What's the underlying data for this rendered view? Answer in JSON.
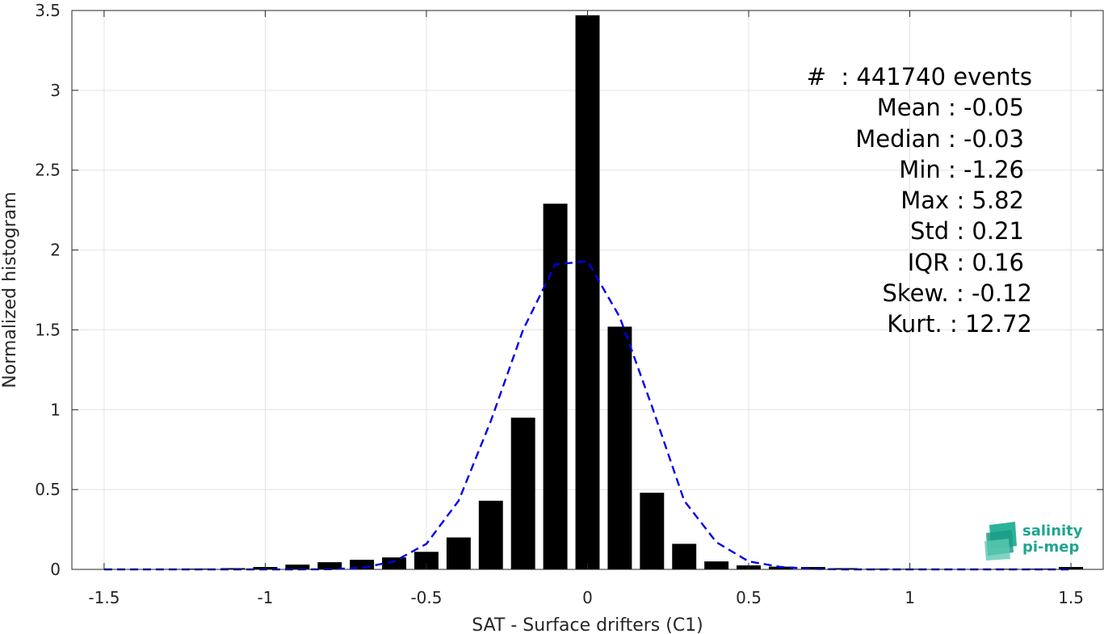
{
  "chart_data": {
    "type": "bar",
    "xlabel": "SAT - Surface drifters (C1)",
    "ylabel": "Normalized histogram",
    "xlim": [
      -1.6,
      1.6
    ],
    "ylim": [
      0,
      3.5
    ],
    "xticks": [
      "-1.5",
      "-1",
      "-0.5",
      "0",
      "0.5",
      "1",
      "1.5"
    ],
    "yticks": [
      "0",
      "0.5",
      "1",
      "1.5",
      "2",
      "2.5",
      "3",
      "3.5"
    ],
    "grid": true,
    "bar_color": "#000000",
    "bins": [
      -1.5,
      -1.4,
      -1.3,
      -1.2,
      -1.1,
      -1.0,
      -0.9,
      -0.8,
      -0.7,
      -0.6,
      -0.5,
      -0.4,
      -0.3,
      -0.2,
      -0.1,
      0.0,
      0.1,
      0.2,
      0.3,
      0.4,
      0.5,
      0.6,
      0.7,
      0.8,
      0.9,
      1.0,
      1.1,
      1.2,
      1.3,
      1.4,
      1.5
    ],
    "values": [
      0.002,
      0.002,
      0.003,
      0.005,
      0.008,
      0.015,
      0.03,
      0.045,
      0.06,
      0.075,
      0.11,
      0.2,
      0.43,
      0.95,
      2.29,
      3.47,
      1.52,
      0.48,
      0.16,
      0.05,
      0.025,
      0.017,
      0.015,
      0.008,
      0.005,
      0.004,
      0.003,
      0.003,
      0.004,
      0.005,
      0.015
    ],
    "fit_curve": {
      "style": "dashed",
      "color": "#0000e6",
      "x": [
        -1.5,
        -1.4,
        -1.3,
        -1.2,
        -1.1,
        -1.0,
        -0.9,
        -0.8,
        -0.7,
        -0.6,
        -0.5,
        -0.4,
        -0.3,
        -0.2,
        -0.1,
        0.0,
        0.1,
        0.2,
        0.3,
        0.4,
        0.5,
        0.6,
        0.7,
        0.8,
        0.9,
        1.0,
        1.1,
        1.2,
        1.3,
        1.4,
        1.5
      ],
      "y": [
        0,
        0,
        0,
        0,
        0,
        0,
        0,
        0.001,
        0.01,
        0.05,
        0.16,
        0.43,
        0.93,
        1.5,
        1.91,
        1.93,
        1.58,
        1.02,
        0.43,
        0.17,
        0.05,
        0.015,
        0.003,
        0,
        0,
        0,
        0,
        0,
        0,
        0,
        0
      ]
    }
  },
  "stats": {
    "count": "#  : 441740 events",
    "mean": "Mean : -0.05",
    "median": "Median : -0.03",
    "min": "Min : -1.26",
    "max": "Max : 5.82",
    "std": "Std : 0.21",
    "iqr": "IQR : 0.16",
    "skew": "Skew. : -0.12",
    "kurt": "Kurt. : 12.72"
  },
  "logo": {
    "line1": "salinity",
    "line2": "pi-mep",
    "color": "#1fa58f"
  }
}
